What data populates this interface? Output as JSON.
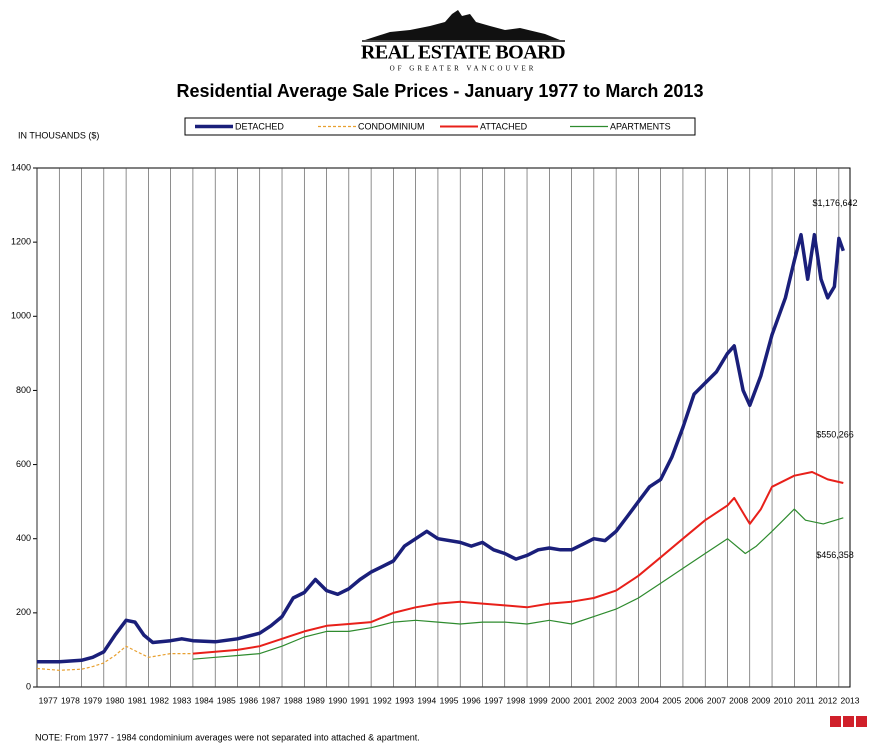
{
  "header": {
    "brand": "REAL ESTATE BOARD",
    "subbrand": "OF GREATER VANCOUVER"
  },
  "chart_data": {
    "type": "line",
    "title": "Residential Average Sale Prices  -  January 1977 to March 2013",
    "y_label": "IN THOUSANDS ($)",
    "note": "NOTE:  From 1977 - 1984 condominium averages were not separated into attached & apartment.",
    "xlim": [
      1977,
      2013.5
    ],
    "xticks": [
      1977,
      1978,
      1979,
      1980,
      1981,
      1982,
      1983,
      1984,
      1985,
      1986,
      1987,
      1988,
      1989,
      1990,
      1991,
      1992,
      1993,
      1994,
      1995,
      1996,
      1997,
      1998,
      1999,
      2000,
      2001,
      2002,
      2003,
      2004,
      2005,
      2006,
      2007,
      2008,
      2009,
      2010,
      2011,
      2012,
      2013
    ],
    "ylim": [
      0,
      1400
    ],
    "yticks": [
      0,
      200,
      400,
      600,
      800,
      1000,
      1200,
      1400
    ],
    "grid": "x",
    "series": [
      {
        "name": "DETACHED",
        "color": "#1a1f7a",
        "style": "solid",
        "width": 3.5,
        "x": [
          1977,
          1978,
          1979,
          1979.5,
          1980,
          1980.5,
          1981,
          1981.4,
          1981.8,
          1982.2,
          1983,
          1983.5,
          1984,
          1985,
          1986,
          1987,
          1987.5,
          1988,
          1988.5,
          1989,
          1989.5,
          1990,
          1990.5,
          1991,
          1991.5,
          1992,
          1993,
          1993.5,
          1994,
          1994.5,
          1995,
          1996,
          1996.5,
          1997,
          1997.5,
          1998,
          1998.5,
          1999,
          1999.5,
          2000,
          2000.5,
          2001,
          2001.5,
          2002,
          2002.5,
          2003,
          2003.5,
          2004,
          2004.5,
          2005,
          2005.5,
          2006,
          2006.5,
          2007,
          2007.5,
          2008,
          2008.3,
          2008.7,
          2009,
          2009.5,
          2010,
          2010.3,
          2010.6,
          2011,
          2011.3,
          2011.6,
          2011.9,
          2012.2,
          2012.5,
          2012.8,
          2013,
          2013.2
        ],
        "values": [
          68,
          68,
          72,
          80,
          95,
          140,
          180,
          175,
          140,
          120,
          125,
          130,
          125,
          122,
          130,
          145,
          165,
          190,
          240,
          255,
          290,
          260,
          250,
          265,
          290,
          310,
          340,
          380,
          400,
          420,
          400,
          390,
          380,
          390,
          370,
          360,
          345,
          355,
          370,
          375,
          370,
          370,
          385,
          400,
          395,
          420,
          460,
          500,
          540,
          560,
          620,
          700,
          790,
          820,
          850,
          900,
          920,
          800,
          760,
          840,
          950,
          1000,
          1050,
          1150,
          1220,
          1100,
          1220,
          1100,
          1050,
          1080,
          1210,
          1176.642
        ],
        "value_labels": [
          null,
          null,
          null,
          null,
          null,
          null,
          null,
          null,
          null,
          null,
          null,
          null,
          null,
          null,
          null,
          null,
          null,
          null,
          null,
          null,
          null,
          null,
          null,
          null,
          null,
          null,
          null,
          null,
          null,
          null,
          null,
          null,
          null,
          null,
          null,
          null,
          null,
          null,
          null,
          null,
          null,
          null,
          null,
          null,
          null,
          null,
          null,
          null,
          null,
          null,
          null,
          null,
          null,
          null,
          null,
          null,
          null,
          null,
          null,
          null,
          null,
          null,
          null,
          null,
          null,
          null,
          null,
          null,
          null,
          null,
          null,
          "$1,176,642"
        ]
      },
      {
        "name": "CONDOMINIUM",
        "color": "#e8a030",
        "style": "dashed",
        "width": 1.2,
        "x": [
          1977,
          1978,
          1979,
          1979.5,
          1980,
          1980.5,
          1981,
          1981.5,
          1982,
          1982.5,
          1983,
          1984
        ],
        "values": [
          50,
          45,
          48,
          55,
          65,
          85,
          110,
          95,
          80,
          85,
          90,
          90
        ]
      },
      {
        "name": "ATTACHED",
        "color": "#e8201a",
        "style": "solid",
        "width": 2,
        "x": [
          1984,
          1985,
          1986,
          1987,
          1988,
          1989,
          1990,
          1991,
          1992,
          1993,
          1994,
          1995,
          1996,
          1997,
          1998,
          1999,
          2000,
          2001,
          2002,
          2003,
          2004,
          2005,
          2006,
          2007,
          2008,
          2008.3,
          2008.8,
          2009,
          2009.5,
          2010,
          2011,
          2011.8,
          2012.5,
          2013.2
        ],
        "values": [
          90,
          95,
          100,
          110,
          130,
          150,
          165,
          170,
          175,
          200,
          215,
          225,
          230,
          225,
          220,
          215,
          225,
          230,
          240,
          260,
          300,
          350,
          400,
          450,
          490,
          510,
          460,
          440,
          480,
          540,
          570,
          580,
          560,
          550.266
        ],
        "value_labels": [
          null,
          null,
          null,
          null,
          null,
          null,
          null,
          null,
          null,
          null,
          null,
          null,
          null,
          null,
          null,
          null,
          null,
          null,
          null,
          null,
          null,
          null,
          null,
          null,
          null,
          null,
          null,
          null,
          null,
          null,
          null,
          null,
          null,
          "$550,266"
        ]
      },
      {
        "name": "APARTMENTS",
        "color": "#2e8b2e",
        "style": "solid",
        "width": 1.2,
        "x": [
          1984,
          1985,
          1986,
          1987,
          1988,
          1989,
          1990,
          1991,
          1992,
          1993,
          1994,
          1995,
          1996,
          1997,
          1998,
          1999,
          2000,
          2001,
          2002,
          2003,
          2004,
          2005,
          2006,
          2007,
          2008,
          2008.8,
          2009.3,
          2010,
          2010.5,
          2011,
          2011.5,
          2012.3,
          2013.2
        ],
        "values": [
          75,
          80,
          85,
          90,
          110,
          135,
          150,
          150,
          160,
          175,
          180,
          175,
          170,
          175,
          175,
          170,
          180,
          170,
          190,
          210,
          240,
          280,
          320,
          360,
          400,
          360,
          380,
          420,
          450,
          480,
          450,
          440,
          456.358
        ],
        "value_labels": [
          null,
          null,
          null,
          null,
          null,
          null,
          null,
          null,
          null,
          null,
          null,
          null,
          null,
          null,
          null,
          null,
          null,
          null,
          null,
          null,
          null,
          null,
          null,
          null,
          null,
          null,
          null,
          null,
          null,
          null,
          null,
          null,
          "$456,358"
        ]
      }
    ]
  }
}
